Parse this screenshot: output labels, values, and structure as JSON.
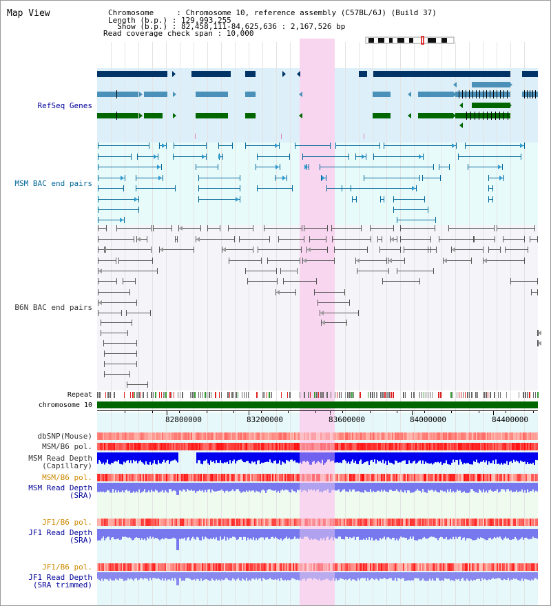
{
  "header": {
    "title": "Map View",
    "info_lines": [
      "Chromosome     : Chromosome 10, reference assembly (C57BL/6J) (Build 37)",
      "Length (b.p.) : 129,993,255",
      "  Show (b.p.) : 82,458,111-84,625,636 : 2,167,526 bp",
      "Read coverage check span : 10,000"
    ]
  },
  "tracks": {
    "refseq": {
      "label": "RefSeq Genes",
      "color": "#000099"
    },
    "msm_bac": {
      "label": "MSM BAC end pairs",
      "color": "#006699"
    },
    "b6n_bac": {
      "label": "B6N BAC end pairs",
      "color": "#333333"
    },
    "repeat": {
      "label": "Repeat"
    },
    "chromosome": {
      "label": "chromosome 10",
      "color": "#006600"
    },
    "axis_ticks": [
      "82800000",
      "83200000",
      "83600000",
      "84000000",
      "84400000"
    ],
    "dbsnp": {
      "label": "dbSNP(Mouse)"
    },
    "msm_b6_pol_1": {
      "label": "MSM/B6 pol."
    },
    "msm_read_depth_cap": {
      "label": [
        "MSM Read Depth",
        "(Capillary)"
      ]
    },
    "msm_b6_pol_2": {
      "label": "MSM/B6 pol.",
      "color": "#cc8800"
    },
    "msm_read_depth_sra": {
      "label": [
        "MSM Read Depth",
        "(SRA)"
      ],
      "color": "#000099"
    },
    "jf1_b6_pol_1": {
      "label": "JF1/B6 pol.",
      "color": "#cc8800"
    },
    "jf1_read_depth_sra": {
      "label": [
        "JF1 Read Depth",
        "(SRA)"
      ],
      "color": "#000099"
    },
    "jf1_b6_pol_2": {
      "label": "JF1/B6 pol.",
      "color": "#cc8800"
    },
    "jf1_read_depth_trim": {
      "label": [
        "JF1 Read Depth",
        "(SRA trimmed)"
      ],
      "color": "#000099"
    }
  },
  "colors": {
    "highlight": "#f9d6f0",
    "refseq_bg": "#ddf0fa",
    "msm_bg": "#e8fbfb",
    "b6n_bg": "#f4f4f9",
    "gene_dark": "#003366",
    "gene_mid": "#4a90b8",
    "gene_green": "#006600",
    "depth_blue": "#0000ee",
    "depth_light": "#7777ee"
  }
}
